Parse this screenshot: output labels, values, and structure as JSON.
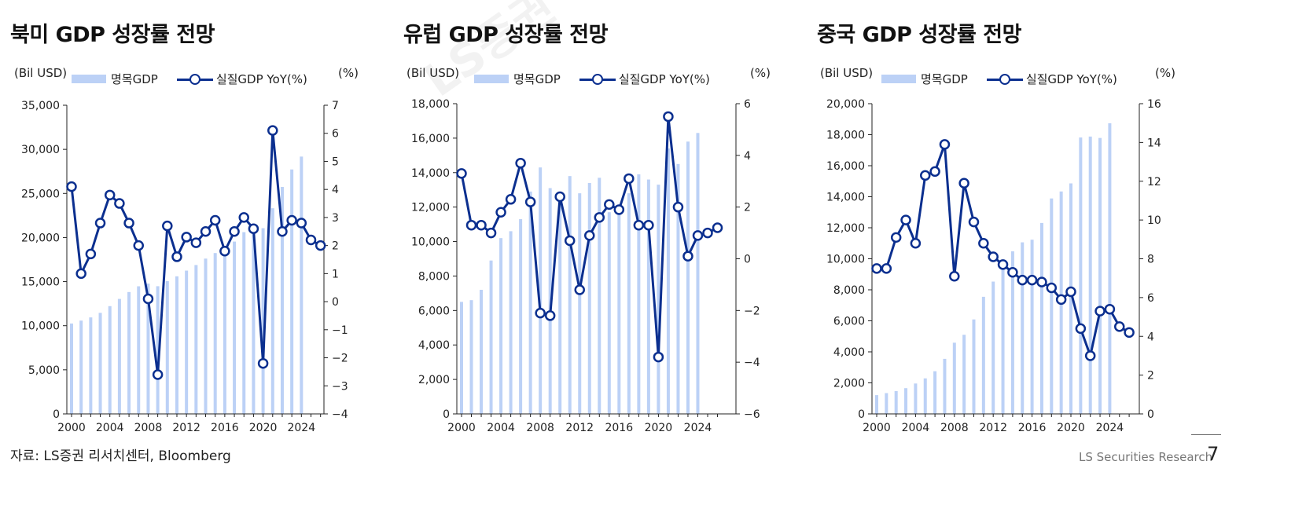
{
  "watermark": "LS증권 리서치",
  "footer": {
    "source": "자료: LS증권 리서치센터, Bloomberg",
    "brand": "LS Securities  Research",
    "page_number": "7"
  },
  "colors": {
    "bar": "#bcd1f6",
    "line": "#0b2f8f",
    "axis": "#222222"
  },
  "chart_data": [
    {
      "type": "bar+line",
      "title": "북미 GDP 성장률 전망",
      "left_unit": "(Bil USD)",
      "right_unit": "(%)",
      "legend": [
        "명목GDP",
        "실질GDP YoY(%)"
      ],
      "years": [
        2000,
        2001,
        2002,
        2003,
        2004,
        2005,
        2006,
        2007,
        2008,
        2009,
        2010,
        2011,
        2012,
        2013,
        2014,
        2015,
        2016,
        2017,
        2018,
        2019,
        2020,
        2021,
        2022,
        2023,
        2024,
        2025,
        2026
      ],
      "x_ticks": [
        2000,
        2004,
        2008,
        2012,
        2016,
        2020,
        2024
      ],
      "bar_values": [
        10250,
        10580,
        10940,
        11460,
        12220,
        13040,
        13820,
        14470,
        14770,
        14480,
        15050,
        15600,
        16250,
        16880,
        17610,
        18240,
        18750,
        19540,
        20610,
        21380,
        21060,
        23320,
        25740,
        27720,
        29180,
        null,
        null
      ],
      "line_values": [
        4.1,
        1.0,
        1.7,
        2.8,
        3.8,
        3.5,
        2.8,
        2.0,
        0.1,
        -2.6,
        2.7,
        1.6,
        2.3,
        2.1,
        2.5,
        2.9,
        1.8,
        2.5,
        3.0,
        2.6,
        -2.2,
        6.1,
        2.5,
        2.9,
        2.8,
        2.2,
        2.0
      ],
      "left_axis": {
        "min": 0,
        "max": 35000,
        "ticks": [
          0,
          5000,
          10000,
          15000,
          20000,
          25000,
          30000,
          35000
        ],
        "labels": [
          "0",
          "5,000",
          "10,000",
          "15,000",
          "20,000",
          "25,000",
          "30,000",
          "35,000"
        ]
      },
      "right_axis": {
        "min": -4,
        "max": 7,
        "ticks": [
          -4,
          -3,
          -2,
          -1,
          0,
          1,
          2,
          3,
          4,
          5,
          6,
          7
        ],
        "labels": [
          "−4",
          "−3",
          "−2",
          "−1",
          "0",
          "1",
          "2",
          "3",
          "4",
          "5",
          "6",
          "7"
        ]
      }
    },
    {
      "type": "bar+line",
      "title": "유럽 GDP 성장률 전망",
      "left_unit": "(Bil USD)",
      "right_unit": "(%)",
      "legend": [
        "명목GDP",
        "실질GDP YoY(%)"
      ],
      "years": [
        2000,
        2001,
        2002,
        2003,
        2004,
        2005,
        2006,
        2007,
        2008,
        2009,
        2010,
        2011,
        2012,
        2013,
        2014,
        2015,
        2016,
        2017,
        2018,
        2019,
        2020,
        2021,
        2022,
        2023,
        2024,
        2025,
        2026
      ],
      "x_ticks": [
        2000,
        2004,
        2008,
        2012,
        2016,
        2020,
        2024
      ],
      "bar_values": [
        6500,
        6600,
        7200,
        8900,
        10200,
        10600,
        11300,
        12900,
        14300,
        13100,
        12900,
        13800,
        12800,
        13400,
        13700,
        11700,
        12000,
        12800,
        13900,
        13600,
        13300,
        15400,
        14500,
        15800,
        16300,
        null,
        null
      ],
      "line_values": [
        3.3,
        1.3,
        1.3,
        1.0,
        1.8,
        2.3,
        3.7,
        2.2,
        -2.1,
        -2.2,
        2.4,
        0.7,
        -1.2,
        0.9,
        1.6,
        2.1,
        1.9,
        3.1,
        1.3,
        1.3,
        -3.8,
        5.5,
        2.0,
        0.1,
        0.9,
        1.0,
        1.2
      ],
      "left_axis": {
        "min": 0,
        "max": 18000,
        "ticks": [
          0,
          2000,
          4000,
          6000,
          8000,
          10000,
          12000,
          14000,
          16000,
          18000
        ],
        "labels": [
          "0",
          "2,000",
          "4,000",
          "6,000",
          "8,000",
          "10,000",
          "12,000",
          "14,000",
          "16,000",
          "18,000"
        ]
      },
      "right_axis": {
        "min": -6,
        "max": 6,
        "ticks": [
          -6,
          -4,
          -2,
          0,
          2,
          4,
          6
        ],
        "labels": [
          "−6",
          "−4",
          "−2",
          "0",
          "2",
          "4",
          "6"
        ]
      }
    },
    {
      "type": "bar+line",
      "title": "중국 GDP 성장률 전망",
      "left_unit": "(Bil USD)",
      "right_unit": "(%)",
      "legend": [
        "명목GDP",
        "실질GDP YoY(%)"
      ],
      "years": [
        2000,
        2001,
        2002,
        2003,
        2004,
        2005,
        2006,
        2007,
        2008,
        2009,
        2010,
        2011,
        2012,
        2013,
        2014,
        2015,
        2016,
        2017,
        2018,
        2019,
        2020,
        2021,
        2022,
        2023,
        2024,
        2025,
        2026
      ],
      "x_ticks": [
        2000,
        2004,
        2008,
        2012,
        2016,
        2020,
        2024
      ],
      "bar_values": [
        1210,
        1340,
        1470,
        1660,
        1960,
        2290,
        2750,
        3550,
        4590,
        5100,
        6090,
        7550,
        8530,
        9570,
        10480,
        11060,
        11230,
        12310,
        13890,
        14340,
        14860,
        17820,
        17880,
        17790,
        18740,
        null,
        null
      ],
      "line_values": [
        7.5,
        7.5,
        9.1,
        10.0,
        8.8,
        12.3,
        12.5,
        13.9,
        7.1,
        11.9,
        9.9,
        8.8,
        8.1,
        7.7,
        7.3,
        6.9,
        6.9,
        6.8,
        6.5,
        5.9,
        6.3,
        4.4,
        3.0,
        5.3,
        5.4,
        4.5,
        4.2
      ],
      "left_axis": {
        "min": 0,
        "max": 20000,
        "ticks": [
          0,
          2000,
          4000,
          6000,
          8000,
          10000,
          12000,
          14000,
          16000,
          18000,
          20000
        ],
        "labels": [
          "0",
          "2,000",
          "4,000",
          "6,000",
          "8,000",
          "10,000",
          "12,000",
          "14,000",
          "16,000",
          "18,000",
          "20,000"
        ]
      },
      "right_axis": {
        "min": 0,
        "max": 16,
        "ticks": [
          0,
          2,
          4,
          6,
          8,
          10,
          12,
          14,
          16
        ],
        "labels": [
          "0",
          "2",
          "4",
          "6",
          "8",
          "10",
          "12",
          "14",
          "16"
        ]
      }
    }
  ]
}
